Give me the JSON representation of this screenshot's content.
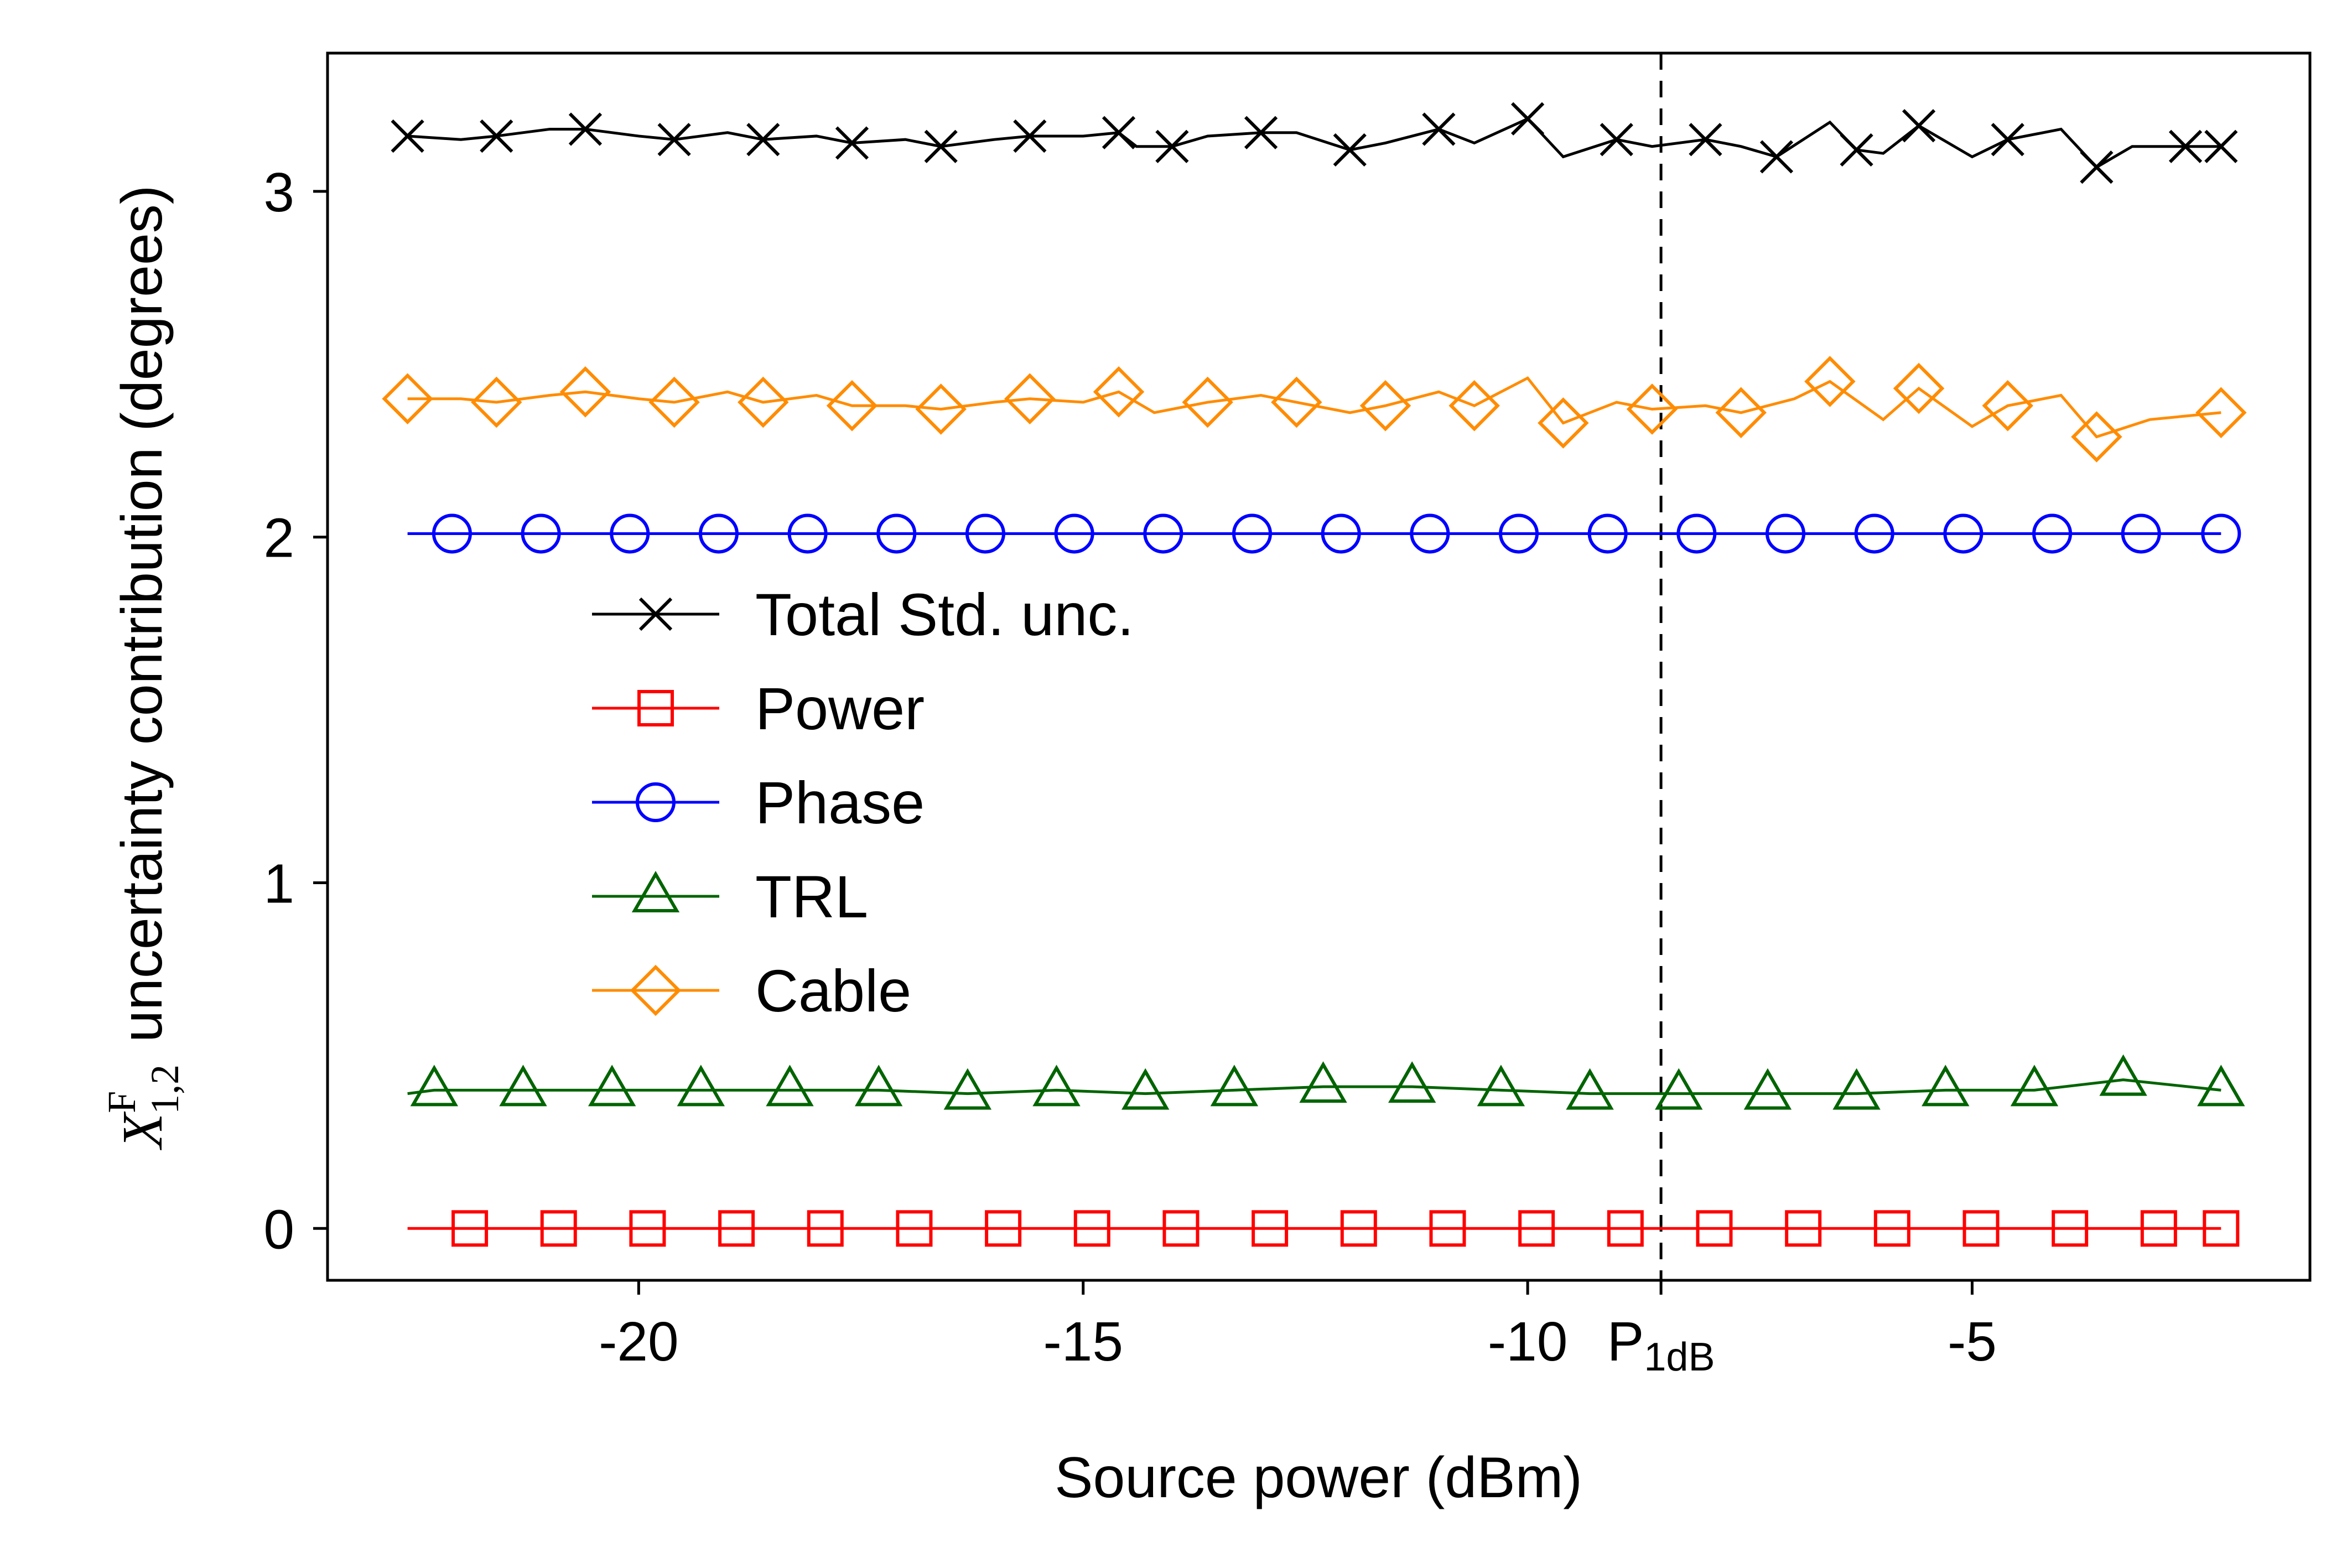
{
  "chart_data": {
    "type": "line",
    "title": "",
    "xlabel": "Source power (dBm)",
    "ylabel": {
      "symbol": "X",
      "superscript": "F",
      "subscript": "1,2",
      "text": "uncertainty contribution (degrees)"
    },
    "xlim": [
      -23.5,
      -1.2
    ],
    "ylim": [
      -0.15,
      3.4
    ],
    "xticks": [
      {
        "value": -20,
        "label": "-20"
      },
      {
        "value": -15,
        "label": "-15"
      },
      {
        "value": -10,
        "label": "-10"
      },
      {
        "value": -5,
        "label": "-5"
      }
    ],
    "yticks": [
      {
        "value": 0,
        "label": "0"
      },
      {
        "value": 1,
        "label": "1"
      },
      {
        "value": 2,
        "label": "2"
      },
      {
        "value": 3,
        "label": "3"
      }
    ],
    "reference_line": {
      "x": -8.5,
      "style": "dashed",
      "label": "P",
      "label_sub": "1dB"
    },
    "grid": false,
    "legend_position": "center-left",
    "series": [
      {
        "name": "Total Std. unc.",
        "color": "#000000",
        "marker": "x",
        "x": [
          -22.6,
          -22.0,
          -21.6,
          -21.0,
          -20.6,
          -20.0,
          -19.6,
          -19.0,
          -18.6,
          -18.0,
          -17.6,
          -17.0,
          -16.6,
          -16.0,
          -15.6,
          -15.0,
          -14.6,
          -14.4,
          -14.0,
          -13.6,
          -13.0,
          -12.6,
          -12.0,
          -11.6,
          -11.0,
          -10.6,
          -10.0,
          -9.6,
          -9.0,
          -8.6,
          -8.0,
          -7.6,
          -7.2,
          -6.6,
          -6.3,
          -6.0,
          -5.6,
          -5.0,
          -4.6,
          -4.0,
          -3.6,
          -3.2,
          -2.6,
          -2.2
        ],
        "values": [
          3.16,
          3.15,
          3.16,
          3.18,
          3.18,
          3.16,
          3.15,
          3.17,
          3.15,
          3.16,
          3.14,
          3.15,
          3.13,
          3.15,
          3.16,
          3.16,
          3.17,
          3.13,
          3.13,
          3.16,
          3.17,
          3.17,
          3.12,
          3.14,
          3.18,
          3.14,
          3.21,
          3.1,
          3.15,
          3.13,
          3.15,
          3.13,
          3.1,
          3.2,
          3.12,
          3.11,
          3.19,
          3.1,
          3.15,
          3.18,
          3.07,
          3.13,
          3.13,
          3.13
        ]
      },
      {
        "name": "Power",
        "color": "#ff0000",
        "marker": "square",
        "x": [
          -22.6,
          -21.9,
          -20.9,
          -19.9,
          -18.9,
          -17.9,
          -16.9,
          -15.9,
          -14.9,
          -13.9,
          -12.9,
          -11.9,
          -10.9,
          -9.9,
          -8.9,
          -7.9,
          -6.9,
          -5.9,
          -4.9,
          -3.9,
          -2.9,
          -2.2
        ],
        "values": [
          0.0,
          0.0,
          0.0,
          0.0,
          0.0,
          0.0,
          0.0,
          0.0,
          0.0,
          0.0,
          0.0,
          0.0,
          0.0,
          0.0,
          0.0,
          0.0,
          0.0,
          0.0,
          0.0,
          0.0,
          0.0,
          0.0
        ]
      },
      {
        "name": "Phase",
        "color": "#0000ff",
        "marker": "circle",
        "x": [
          -22.6,
          -22.1,
          -21.1,
          -20.1,
          -19.1,
          -18.1,
          -17.1,
          -16.1,
          -15.1,
          -14.1,
          -13.1,
          -12.1,
          -11.1,
          -10.1,
          -9.1,
          -8.1,
          -7.1,
          -6.1,
          -5.1,
          -4.1,
          -3.1,
          -2.2
        ],
        "values": [
          2.01,
          2.01,
          2.01,
          2.01,
          2.01,
          2.01,
          2.01,
          2.01,
          2.01,
          2.01,
          2.01,
          2.01,
          2.01,
          2.01,
          2.01,
          2.01,
          2.01,
          2.01,
          2.01,
          2.01,
          2.01,
          2.01
        ]
      },
      {
        "name": "TRL",
        "color": "#006400",
        "marker": "triangle",
        "x": [
          -22.6,
          -22.3,
          -21.3,
          -20.3,
          -19.3,
          -18.3,
          -17.3,
          -16.3,
          -15.3,
          -14.3,
          -13.3,
          -12.3,
          -11.3,
          -10.3,
          -9.3,
          -8.3,
          -7.3,
          -6.3,
          -5.3,
          -4.3,
          -3.3,
          -2.2
        ],
        "values": [
          0.39,
          0.4,
          0.4,
          0.4,
          0.4,
          0.4,
          0.4,
          0.39,
          0.4,
          0.39,
          0.4,
          0.41,
          0.41,
          0.4,
          0.39,
          0.39,
          0.39,
          0.39,
          0.4,
          0.4,
          0.43,
          0.4
        ]
      },
      {
        "name": "Cable",
        "color": "#ff8c00",
        "marker": "diamond",
        "x": [
          -22.6,
          -22.0,
          -21.6,
          -21.0,
          -20.6,
          -20.0,
          -19.6,
          -19.0,
          -18.6,
          -18.0,
          -17.6,
          -17.0,
          -16.6,
          -16.0,
          -15.6,
          -15.0,
          -14.6,
          -14.2,
          -13.6,
          -13.0,
          -12.6,
          -12.0,
          -11.6,
          -11.0,
          -10.6,
          -10.0,
          -9.6,
          -9.0,
          -8.6,
          -8.0,
          -7.6,
          -7.0,
          -6.6,
          -6.0,
          -5.6,
          -5.0,
          -4.6,
          -4.0,
          -3.6,
          -3.0,
          -2.2
        ],
        "values": [
          2.4,
          2.4,
          2.39,
          2.41,
          2.42,
          2.4,
          2.39,
          2.42,
          2.39,
          2.41,
          2.38,
          2.38,
          2.37,
          2.39,
          2.4,
          2.39,
          2.42,
          2.36,
          2.39,
          2.41,
          2.39,
          2.36,
          2.38,
          2.42,
          2.38,
          2.46,
          2.33,
          2.39,
          2.37,
          2.38,
          2.36,
          2.4,
          2.45,
          2.34,
          2.43,
          2.32,
          2.38,
          2.41,
          2.29,
          2.34,
          2.36
        ]
      }
    ]
  }
}
